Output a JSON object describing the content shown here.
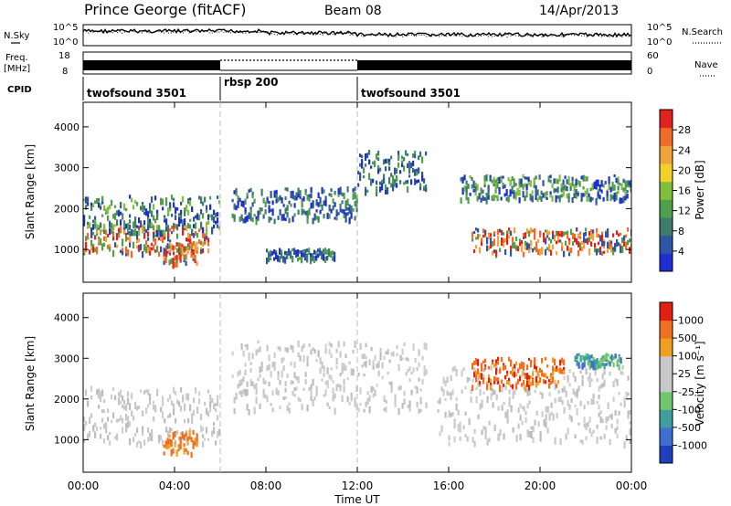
{
  "header": {
    "station": "Prince George (fitACF)",
    "beam": "Beam 08",
    "date": "14/Apr/2013"
  },
  "side_labels": {
    "nsky": "N.Sky",
    "freq_line1": "Freq.",
    "freq_line2": "[MHz]",
    "cpid": "CPID",
    "nsearch": "N.Search",
    "nave": "Nave"
  },
  "panel_ticks": {
    "noise_left": [
      "10^5",
      "10^0"
    ],
    "noise_right": [
      "10^5",
      "10^0"
    ],
    "freq_left": [
      "18",
      "8"
    ],
    "freq_right": [
      "60",
      "0"
    ]
  },
  "cpid_segments": [
    {
      "label": "twofsound 3501",
      "start": 0,
      "end": 6
    },
    {
      "label": "rbsp 200",
      "start": 6,
      "end": 12
    },
    {
      "label": "twofsound 3501",
      "start": 12,
      "end": 24
    }
  ],
  "chart_data": [
    {
      "type": "heatmap",
      "title": "",
      "ylabel": "Slant Range [km]",
      "xlabel": "",
      "x_range_hours": [
        0,
        24
      ],
      "ylim": [
        200,
        4600
      ],
      "y_ticks": [
        "1000",
        "2000",
        "3000",
        "4000"
      ],
      "colorbar": {
        "label": "Power [dB]",
        "ticks": [
          "28",
          "24",
          "20",
          "16",
          "12",
          "8",
          "4"
        ],
        "colors": [
          "#1f2fd8",
          "#2f55a6",
          "#3e7c6b",
          "#4f9f4b",
          "#7ec03e",
          "#f2d12a",
          "#f2a23a",
          "#f06b2a",
          "#e2221c"
        ]
      },
      "echo_bands": [
        {
          "start": 0.0,
          "end": 5.5,
          "low": 900,
          "high": 1600,
          "power": "strong"
        },
        {
          "start": 3.5,
          "end": 5.0,
          "low": 650,
          "high": 1150,
          "power": "strong"
        },
        {
          "start": 0.0,
          "end": 6.0,
          "low": 1400,
          "high": 2300,
          "power": "moderate"
        },
        {
          "start": 6.5,
          "end": 12.0,
          "low": 1700,
          "high": 2500,
          "power": "weak"
        },
        {
          "start": 8.0,
          "end": 11.0,
          "low": 750,
          "high": 1000,
          "power": "weak"
        },
        {
          "start": 12.0,
          "end": 15.0,
          "low": 2400,
          "high": 3400,
          "power": "weak"
        },
        {
          "start": 17.0,
          "end": 24.0,
          "low": 900,
          "high": 1500,
          "power": "strong"
        },
        {
          "start": 16.5,
          "end": 24.0,
          "low": 2200,
          "high": 2800,
          "power": "moderate"
        }
      ]
    },
    {
      "type": "heatmap",
      "title": "",
      "ylabel": "Slant Range [km]",
      "xlabel": "Time UT",
      "x_range_hours": [
        0,
        24
      ],
      "x_ticks": [
        "00:00",
        "04:00",
        "08:00",
        "12:00",
        "16:00",
        "20:00",
        "00:00"
      ],
      "ylim": [
        200,
        4600
      ],
      "y_ticks": [
        "1000",
        "2000",
        "3000",
        "4000"
      ],
      "colorbar": {
        "label": "Velocity [m s⁻¹]",
        "ticks": [
          "1000",
          "500",
          "100",
          "25",
          "-25",
          "-100",
          "-500",
          "-1000"
        ],
        "colors": [
          "#1f3fbf",
          "#3f6fd0",
          "#3f9fa0",
          "#6fc86f",
          "#c8c8c8",
          "#c8c8c8",
          "#f0a020",
          "#f07020",
          "#e02010"
        ]
      },
      "echo_bands": [
        {
          "start": 0.0,
          "end": 6.0,
          "low": 900,
          "high": 2300,
          "velocity": "near zero"
        },
        {
          "start": 3.5,
          "end": 5.0,
          "low": 650,
          "high": 1200,
          "velocity": "-100 to -500"
        },
        {
          "start": 6.5,
          "end": 15.0,
          "low": 1700,
          "high": 3400,
          "velocity": "near zero"
        },
        {
          "start": 15.5,
          "end": 24.0,
          "low": 900,
          "high": 2800,
          "velocity": "near zero"
        },
        {
          "start": 17.0,
          "end": 21.0,
          "low": 2300,
          "high": 3000,
          "velocity": "-100 to -1000"
        },
        {
          "start": 21.5,
          "end": 23.5,
          "low": 2800,
          "high": 3100,
          "velocity": "100 to 500"
        }
      ]
    }
  ]
}
